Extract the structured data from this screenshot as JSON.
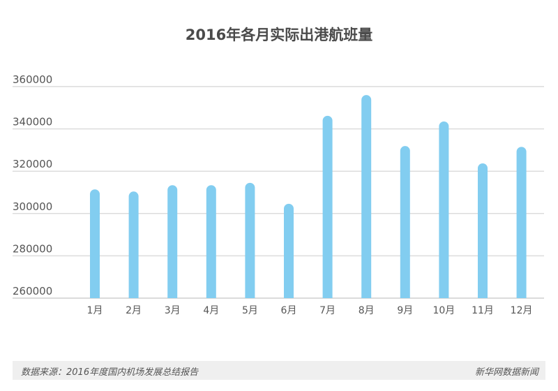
{
  "chart_data": {
    "type": "bar",
    "title": "2016年各月实际出港航班量",
    "categories": [
      "1月",
      "2月",
      "3月",
      "4月",
      "5月",
      "6月",
      "7月",
      "8月",
      "9月",
      "10月",
      "11月",
      "12月"
    ],
    "values": [
      311400,
      310400,
      313400,
      313400,
      314500,
      304600,
      346200,
      356000,
      331900,
      343500,
      323700,
      331500
    ],
    "ylim": [
      260000,
      360000
    ],
    "yticks": [
      260000,
      280000,
      300000,
      320000,
      340000,
      360000
    ],
    "xlabel": "",
    "ylabel": "",
    "grid": true,
    "bar_color": "#82cdf0"
  },
  "footer": {
    "source": "数据来源：2016年度国内机场发展总结报告",
    "brand": "新华网数据新闻"
  }
}
